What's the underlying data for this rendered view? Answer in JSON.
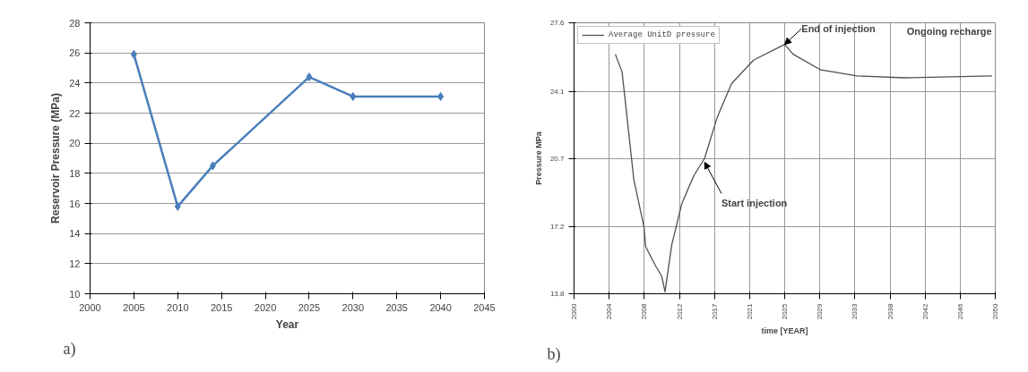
{
  "chart_data": [
    {
      "type": "line",
      "xlabel": "Year",
      "ylabel": "Reservoir Pressure (MPa)",
      "xlim": [
        2000,
        2045
      ],
      "ylim": [
        10,
        28
      ],
      "xticks": [
        2000,
        2005,
        2010,
        2015,
        2020,
        2025,
        2030,
        2035,
        2040,
        2045
      ],
      "yticks": [
        10,
        12,
        14,
        16,
        18,
        20,
        22,
        24,
        26,
        28
      ],
      "grid": "y",
      "marker": "diamond",
      "line_style": "solid",
      "legend": false,
      "x": [
        2005,
        2010,
        2014,
        2025,
        2030,
        2040
      ],
      "series": [
        {
          "color": "#4a7ebb",
          "values": [
            25.9,
            15.8,
            18.5,
            24.4,
            23.1,
            23.1
          ]
        }
      ],
      "annotations": [
        "a)"
      ]
    },
    {
      "type": "line",
      "xlabel": "time [YEAR]",
      "ylabel": "Pressure MPa",
      "xlim": [
        2000,
        2050
      ],
      "ylim": [
        13.8,
        27.6
      ],
      "xticks": [
        {
          "value": 2000,
          "label": "2000"
        },
        {
          "value": 2004.17,
          "label": "2004"
        },
        {
          "value": 2008.33,
          "label": "2008"
        },
        {
          "value": 2012.5,
          "label": "2012"
        },
        {
          "value": 2016.67,
          "label": "2017"
        },
        {
          "value": 2020.83,
          "label": "2021"
        },
        {
          "value": 2025,
          "label": "2025"
        },
        {
          "value": 2029.17,
          "label": "2029"
        },
        {
          "value": 2033.33,
          "label": "2033"
        },
        {
          "value": 2037.5,
          "label": "2038"
        },
        {
          "value": 2041.67,
          "label": "2042"
        },
        {
          "value": 2045.83,
          "label": "2046"
        },
        {
          "value": 2050,
          "label": "2050"
        }
      ],
      "yticks": [
        13.8,
        17.2,
        20.7,
        24.1,
        27.6
      ],
      "grid": true,
      "marker": "none",
      "line_style": "solid",
      "legend": "top left",
      "x": [
        2004.9,
        2005.7,
        2007.1,
        2008.3,
        2008.5,
        2009.7,
        2010.4,
        2010.8,
        2011.6,
        2012.8,
        2014.2,
        2015.5,
        2017.0,
        2018.7,
        2021.3,
        2025.0,
        2026.0,
        2029.3,
        2033.6,
        2039.2,
        2049.6
      ],
      "series": [
        {
          "name": "Average UnitD pressure",
          "color": "#505050",
          "values": [
            26.0,
            25.1,
            19.6,
            17.2,
            16.2,
            15.2,
            14.7,
            13.9,
            16.3,
            18.4,
            19.8,
            20.7,
            22.8,
            24.5,
            25.7,
            26.5,
            26.0,
            25.2,
            24.9,
            24.8,
            24.9
          ]
        }
      ],
      "annotations": [
        {
          "text": "End of injection",
          "x": 2025,
          "y": 26.5
        },
        {
          "text": "Start injection",
          "x": 2015.5,
          "y": 20.5
        },
        "Ongoing recharge",
        "b)"
      ]
    }
  ]
}
